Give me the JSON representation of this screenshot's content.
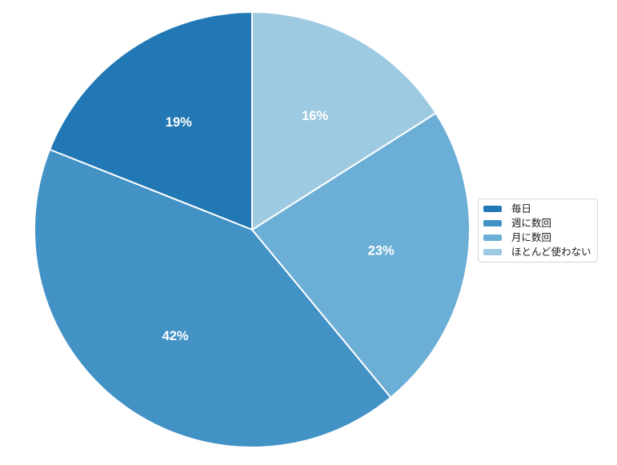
{
  "figure": {
    "background": "#ffffff"
  },
  "chart_data": {
    "type": "pie",
    "title": "",
    "categories": [
      "毎日",
      "週に数回",
      "月に数回",
      "ほとんど使わない"
    ],
    "values": [
      19,
      42,
      23,
      16
    ],
    "items": [
      {
        "label": "毎日",
        "value": 19,
        "display": "19%",
        "color": "#2278b5"
      },
      {
        "label": "週に数回",
        "value": 42,
        "display": "42%",
        "color": "#4292c6"
      },
      {
        "label": "月に数回",
        "value": 23,
        "display": "23%",
        "color": "#6baed6"
      },
      {
        "label": "ほとんど使わない",
        "value": 16,
        "display": "16%",
        "color": "#9ecae1"
      }
    ],
    "start_angle_deg": 90,
    "direction": "counterclockwise",
    "slice_border_color": "#ffffff",
    "slice_label_color": "#ffffff",
    "label_radius_fraction": 0.6,
    "legend": {
      "position": "center-right",
      "border_color": "#d5d5d5",
      "background": "#ffffff",
      "text_color": "#1a1a1a"
    }
  }
}
